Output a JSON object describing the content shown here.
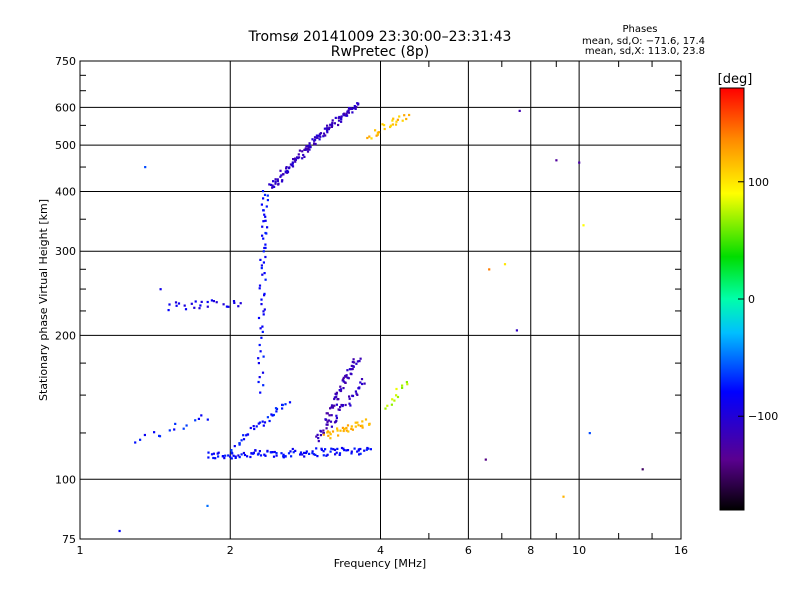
{
  "chart_data": {
    "type": "scatter",
    "title": "Tromsø 20141009 23:30:00–23:31:43",
    "subtitle": "RwPretec (8p)",
    "stats": {
      "heading": "Phases",
      "line1": "mean, sd,O: −71.6, 17.4",
      "line2": "mean, sd,X: 113.0, 23.8"
    },
    "xlabel": "Frequency [MHz]",
    "ylabel": "Stationary phase Virtual Height [km]",
    "x_scale": "log2",
    "y_scale": "log",
    "xlim": [
      1,
      16
    ],
    "ylim": [
      75,
      750
    ],
    "x_ticks": [
      {
        "value": 1,
        "label": "1"
      },
      {
        "value": 2,
        "label": "2"
      },
      {
        "value": 4,
        "label": "4"
      },
      {
        "value": 6,
        "label": "6"
      },
      {
        "value": 8,
        "label": "8"
      },
      {
        "value": 10,
        "label": "10"
      },
      {
        "value": 16,
        "label": "16"
      }
    ],
    "x_grid": [
      2,
      4,
      6,
      8,
      10
    ],
    "x_minor_ticks": [
      5,
      7,
      9,
      12,
      14
    ],
    "y_ticks": [
      {
        "value": 75,
        "label": "75"
      },
      {
        "value": 100,
        "label": "100"
      },
      {
        "value": 200,
        "label": "200"
      },
      {
        "value": 300,
        "label": "300"
      },
      {
        "value": 400,
        "label": "400"
      },
      {
        "value": 500,
        "label": "500"
      },
      {
        "value": 600,
        "label": "600"
      },
      {
        "value": 750,
        "label": "750"
      }
    ],
    "y_grid": [
      100,
      200,
      300,
      400,
      500,
      600
    ],
    "y_minor_ticks": [
      125,
      150,
      175,
      225,
      250,
      275,
      350,
      450,
      550,
      650,
      700
    ],
    "grid": true,
    "colorbar": {
      "label": "[deg]",
      "range": [
        -180,
        180
      ],
      "ticks": [
        {
          "value": 100,
          "label": "100"
        },
        {
          "value": 0,
          "label": "0"
        },
        {
          "value": -100,
          "label": "−100"
        }
      ]
    },
    "series": [
      {
        "group": "O-mode",
        "traces": [
          {
            "x_range": [
              1.8,
              3.8
            ],
            "y_start": 112,
            "y_end": 115,
            "phase": -80,
            "n": 110
          },
          {
            "x_range": [
              2.0,
              2.6
            ],
            "y_start": 115,
            "y_end": 145,
            "phase": -75,
            "n": 35
          },
          {
            "x_range": [
              2.3,
              2.35
            ],
            "y_start": 150,
            "y_end": 400,
            "phase": -80,
            "n": 55
          },
          {
            "x_range": [
              2.4,
              3.6
            ],
            "y_start": 405,
            "y_end": 610,
            "phase": -110,
            "n": 130
          },
          {
            "x_range": [
              3.0,
              3.6
            ],
            "y_start": 120,
            "y_end": 180,
            "phase": -115,
            "n": 70
          },
          {
            "x_range": [
              1.5,
              2.1
            ],
            "y_start": 230,
            "y_end": 235,
            "phase": -90,
            "n": 25
          },
          {
            "x_range": [
              1.3,
              1.8
            ],
            "y_start": 120,
            "y_end": 135,
            "phase": -75,
            "n": 15
          },
          {
            "x_range": [
              3.2,
              3.7
            ],
            "y_start": 130,
            "y_end": 160,
            "phase": -110,
            "n": 30
          }
        ]
      },
      {
        "group": "X-mode",
        "traces": [
          {
            "x_range": [
              3.1,
              3.8
            ],
            "y_start": 123,
            "y_end": 132,
            "phase": 120,
            "n": 35
          },
          {
            "x_range": [
              3.8,
              4.5
            ],
            "y_start": 520,
            "y_end": 580,
            "phase": 115,
            "n": 25
          },
          {
            "x_range": [
              4.1,
              4.5
            ],
            "y_start": 140,
            "y_end": 160,
            "phase": 75,
            "n": 12
          }
        ]
      },
      {
        "group": "isolated",
        "points": [
          {
            "x": 7.6,
            "y": 590,
            "phase": -120
          },
          {
            "x": 9.0,
            "y": 465,
            "phase": -130
          },
          {
            "x": 10.0,
            "y": 460,
            "phase": -125
          },
          {
            "x": 10.2,
            "y": 340,
            "phase": 90
          },
          {
            "x": 6.6,
            "y": 275,
            "phase": 140
          },
          {
            "x": 7.1,
            "y": 282,
            "phase": 100
          },
          {
            "x": 13.4,
            "y": 105,
            "phase": -150
          },
          {
            "x": 9.3,
            "y": 92,
            "phase": 120
          },
          {
            "x": 6.5,
            "y": 110,
            "phase": -140
          },
          {
            "x": 1.45,
            "y": 250,
            "phase": -90
          },
          {
            "x": 1.35,
            "y": 450,
            "phase": -60
          },
          {
            "x": 1.2,
            "y": 78,
            "phase": -80
          },
          {
            "x": 7.5,
            "y": 205,
            "phase": -110
          },
          {
            "x": 1.8,
            "y": 88,
            "phase": -50
          },
          {
            "x": 10.5,
            "y": 125,
            "phase": -60
          }
        ]
      }
    ]
  }
}
